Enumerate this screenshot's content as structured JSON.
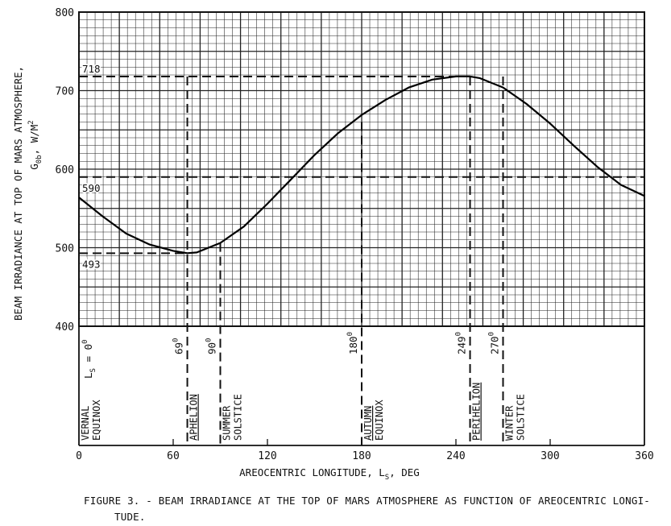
{
  "chart_data": {
    "type": "line",
    "series": [
      {
        "x": [
          0,
          15,
          30,
          45,
          60,
          69,
          75,
          90,
          105,
          120,
          135,
          150,
          165,
          180,
          195,
          210,
          225,
          240,
          249,
          255,
          270,
          285,
          300,
          315,
          330,
          345,
          360
        ],
        "y": [
          564,
          540,
          518,
          504,
          496,
          493,
          494,
          506,
          527,
          556,
          587,
          618,
          646,
          669,
          688,
          704,
          714,
          718,
          718,
          716,
          704,
          683,
          658,
          630,
          603,
          580,
          566
        ]
      }
    ],
    "reference_lines": {
      "horizontal": [
        {
          "y": 718,
          "label": "718",
          "x_end": 249
        },
        {
          "y": 590,
          "label": "590",
          "x_end": 360
        },
        {
          "y": 493,
          "label": "493",
          "x_end": 69
        }
      ],
      "vertical": [
        {
          "x": 69,
          "y_top": 718
        },
        {
          "x": 90,
          "y_top": 506
        },
        {
          "x": 180,
          "y_top": 660
        },
        {
          "x": 249,
          "y_top": 718
        },
        {
          "x": 270,
          "y_top": 718
        }
      ]
    },
    "xlim": [
      0,
      360
    ],
    "ylim": [
      400,
      800
    ],
    "x_ticks": [
      "0",
      "60",
      "120",
      "180",
      "240",
      "300",
      "360"
    ],
    "y_ticks": [
      "400",
      "500",
      "600",
      "700",
      "800"
    ],
    "xlabel": "AREOCENTRIC LONGITUDE, L",
    "xlabel_sub": "S",
    "xlabel_unit": ", DEG",
    "ylabel": "BEAM IRRADIANCE AT TOP OF MARS ATMOSPHERE,",
    "ylabel_line2": "G",
    "ylabel_line2_sub": "0b",
    "ylabel_line2_unit": ", W/M",
    "ylabel_line2_sup": "2",
    "grid": true,
    "event_markers": [
      {
        "x": 0,
        "angle": "L",
        "angle_sub": "S",
        "angle_suffix": " = 0",
        "sup": "0",
        "name_lines": [
          "VERNAL",
          "EQUINOX"
        ],
        "underline": false
      },
      {
        "x": 69,
        "angle": "69",
        "sup": "0",
        "name_lines": [
          "APHELION"
        ],
        "underline": true
      },
      {
        "x": 90,
        "angle": "90",
        "sup": "0",
        "name_lines": [
          "SUMMER",
          "SOLSTICE"
        ],
        "underline": false
      },
      {
        "x": 180,
        "angle": "180",
        "sup": "0",
        "name_lines": [
          "AUTUMN",
          "EQUINOX"
        ],
        "underline": true
      },
      {
        "x": 249,
        "angle": "249",
        "sup": "0",
        "name_lines": [
          "PERIHELION"
        ],
        "underline": true
      },
      {
        "x": 270,
        "angle": "270",
        "sup": "0",
        "name_lines": [
          "WINTER",
          "SOLSTICE"
        ],
        "underline": false
      }
    ]
  },
  "caption": {
    "line1": "FIGURE 3. - BEAM IRRADIANCE AT THE TOP OF MARS ATMOSPHERE AS FUNCTION OF AREOCENTRIC LONGI-",
    "line2": "TUDE."
  }
}
